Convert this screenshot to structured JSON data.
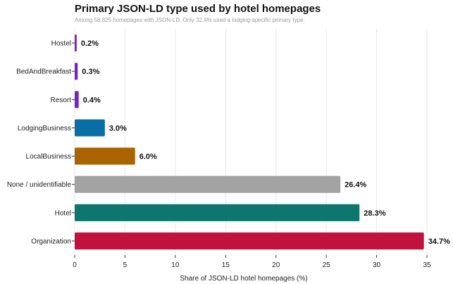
{
  "chart_data": {
    "type": "bar",
    "orientation": "horizontal",
    "title": "Primary JSON-LD type used by hotel homepages",
    "subtitle": "Among 58,825 homepages with JSON-LD. Only 32.4% used a lodging-specific primary type.",
    "xlabel": "Share of JSON-LD hotel homepages (%)",
    "ylabel": "",
    "xlim": [
      0,
      35
    ],
    "xticks": [
      0,
      5,
      10,
      15,
      20,
      25,
      30,
      35
    ],
    "grid": "vertical",
    "legend": "none",
    "categories": [
      "Hostel",
      "BedAndBreakfast",
      "Resort",
      "LodgingBusiness",
      "LocalBusiness",
      "None / unidentifiable",
      "Hotel",
      "Organization"
    ],
    "values": [
      0.2,
      0.3,
      0.4,
      3.0,
      6.0,
      26.4,
      28.3,
      34.7
    ],
    "data_labels": [
      "0.2%",
      "0.3%",
      "0.4%",
      "3.0%",
      "6.0%",
      "26.4%",
      "28.3%",
      "34.7%"
    ],
    "colors": [
      "#7a22c9",
      "#7a22c9",
      "#7a22c9",
      "#0a6ea6",
      "#a96400",
      "#a3a3a3",
      "#0f766e",
      "#c0123d"
    ]
  }
}
